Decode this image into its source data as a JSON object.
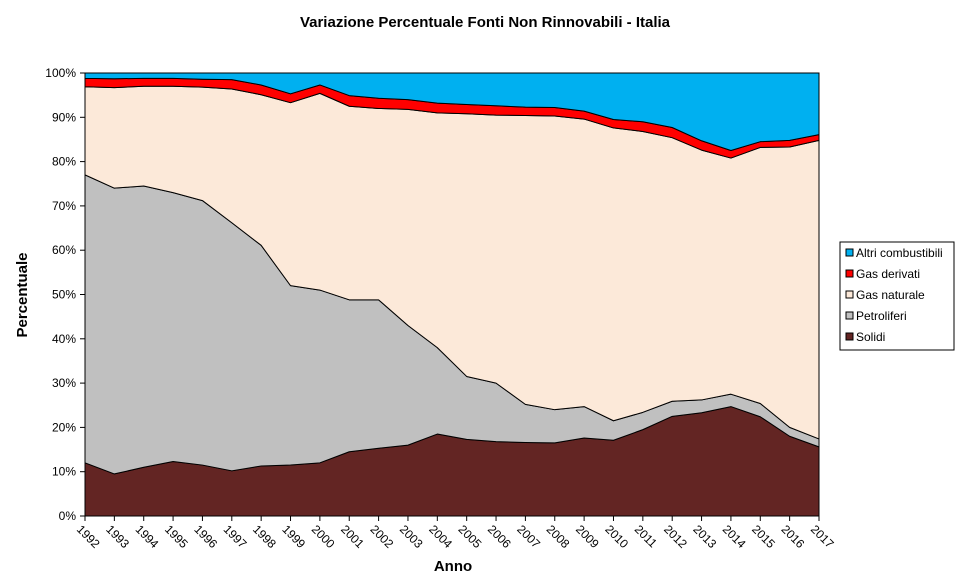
{
  "chart_data": {
    "type": "area",
    "stacked": true,
    "percent": true,
    "title": "Variazione Percentuale Fonti Non Rinnovabili - Italia",
    "xlabel": "Anno",
    "ylabel": "Percentuale",
    "ylim": [
      0,
      100
    ],
    "yticks": [
      "0%",
      "10%",
      "20%",
      "30%",
      "40%",
      "50%",
      "60%",
      "70%",
      "80%",
      "90%",
      "100%"
    ],
    "legend_position": "right",
    "categories": [
      "1992",
      "1993",
      "1994",
      "1995",
      "1996",
      "1997",
      "1998",
      "1999",
      "2000",
      "2001",
      "2002",
      "2003",
      "2004",
      "2005",
      "2006",
      "2007",
      "2008",
      "2009",
      "2010",
      "2011",
      "2012",
      "2013",
      "2014",
      "2015",
      "2016",
      "2017"
    ],
    "series": [
      {
        "name": "Solidi",
        "color": "#632523",
        "values": [
          12.0,
          9.5,
          11.0,
          12.3,
          11.5,
          10.2,
          11.3,
          11.5,
          12.0,
          14.5,
          15.3,
          16.0,
          18.5,
          17.3,
          16.8,
          16.6,
          16.5,
          17.6,
          17.1,
          19.5,
          22.5,
          23.3,
          24.7,
          22.4,
          18.0,
          15.6
        ]
      },
      {
        "name": "Petroliferi",
        "color": "#c0c0c0",
        "values": [
          65.0,
          64.5,
          63.5,
          60.7,
          59.7,
          56.0,
          49.8,
          40.5,
          39.0,
          34.3,
          33.5,
          27.0,
          19.5,
          14.2,
          13.2,
          8.6,
          7.5,
          7.1,
          4.4,
          3.9,
          3.4,
          2.9,
          2.8,
          3.0,
          2.0,
          1.8
        ]
      },
      {
        "name": "Gas naturale",
        "color": "#fce9d9",
        "values": [
          19.9,
          22.7,
          22.5,
          24.0,
          25.6,
          30.2,
          34.0,
          41.3,
          44.4,
          43.7,
          43.2,
          48.8,
          53.0,
          59.3,
          60.5,
          65.2,
          66.3,
          64.9,
          66.1,
          63.4,
          59.5,
          56.4,
          53.3,
          57.8,
          63.3,
          67.4
        ]
      },
      {
        "name": "Gas derivati",
        "color": "#ff0000",
        "values": [
          1.9,
          2.0,
          1.8,
          1.8,
          1.8,
          2.1,
          2.2,
          2.0,
          1.9,
          2.4,
          2.3,
          2.2,
          2.2,
          2.1,
          2.1,
          1.9,
          1.9,
          1.8,
          1.9,
          2.2,
          2.3,
          2.1,
          1.7,
          1.3,
          1.5,
          1.3
        ]
      },
      {
        "name": "Altri combustibili",
        "color": "#00b0f0",
        "values": [
          1.2,
          1.3,
          1.2,
          1.2,
          1.4,
          1.5,
          2.7,
          4.7,
          2.7,
          5.1,
          5.7,
          6.0,
          6.8,
          7.1,
          7.4,
          7.7,
          7.8,
          8.6,
          10.5,
          11.0,
          12.3,
          15.3,
          17.5,
          15.5,
          15.2,
          13.9
        ]
      }
    ]
  }
}
